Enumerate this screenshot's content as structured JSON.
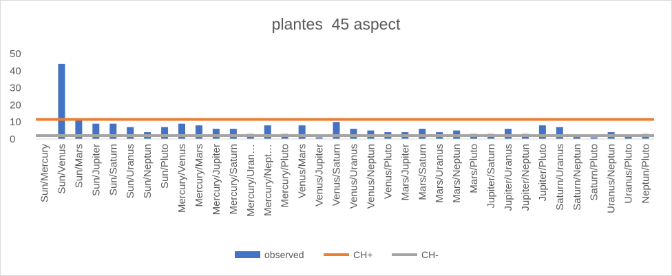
{
  "chart_data": {
    "type": "bar",
    "title": "plantes  45 aspect",
    "xlabel": "",
    "ylabel": "",
    "ylim": [
      0,
      50
    ],
    "yticks": [
      0,
      10,
      20,
      30,
      40,
      50
    ],
    "grid": false,
    "legend_position": "bottom",
    "categories": [
      "Sun/Mercury",
      "Sun/Venus",
      "Sun/Mars",
      "Sun/Jupiter",
      "Sun/Saturn",
      "Sun/Uranus",
      "Sun/Neptun",
      "Sun/Pluto",
      "Mercury/Venus",
      "Mercury/Mars",
      "Mercury/Jupiter",
      "Mercury/Saturn",
      "Mercury/Uran…",
      "Mercury/Nept…",
      "Mercury/Pluto",
      "Venus/Mars",
      "Venus/Jupiter",
      "Venus/Saturn",
      "Venus/Uranus",
      "Venus/Neptun",
      "Venus/Pluto",
      "Mars/Jupiter",
      "Mars/Saturn",
      "Mars/Uranus",
      "Mars/Neptun",
      "Mars/Pluto",
      "Jupiter/Saturn",
      "Jupiter/Uranus",
      "Jupiter/Neptun",
      "Jupiter/Pluto",
      "Saturn/Uranus",
      "Saturn/Neptun",
      "Saturn/Pluto",
      "Uranus/Neptun",
      "Uranus/Pluto",
      "Neptun/Pluto"
    ],
    "series": [
      {
        "name": "observed",
        "type": "bar",
        "color": "#4472c4",
        "values": [
          0,
          44,
          11,
          9,
          9,
          7,
          4,
          7,
          9,
          8,
          6,
          6,
          3,
          8,
          3,
          8,
          1,
          10,
          6,
          5,
          4,
          4,
          6,
          4,
          5,
          3,
          3,
          6,
          3,
          8,
          7,
          2,
          1,
          4,
          2,
          3
        ]
      },
      {
        "name": "CH+",
        "type": "line",
        "color": "#ed7d31",
        "value": 11.5
      },
      {
        "name": "CH-",
        "type": "line",
        "color": "#a5a5a5",
        "value": 2
      }
    ]
  }
}
